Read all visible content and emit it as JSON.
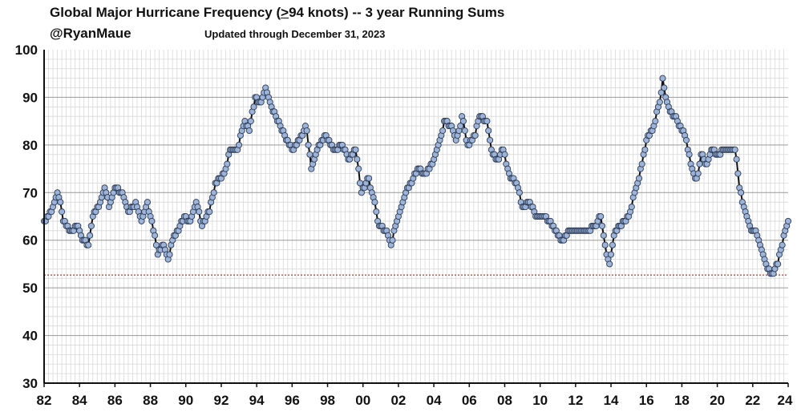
{
  "chart_data": {
    "type": "line",
    "title_prefix": "Global Major Hurricane Frequency (",
    "title_ge": ">",
    "title_suffix": "94 knots)  -- 3 year Running Sums",
    "author": "@RyanMaue",
    "updated": "Updated through December 31, 2023",
    "xlabel": "",
    "ylabel": "",
    "xlim": [
      1982,
      2024
    ],
    "ylim": [
      30,
      100
    ],
    "y_ticks": [
      30,
      40,
      50,
      60,
      70,
      80,
      90,
      100
    ],
    "x_ticks": [
      {
        "value": 1982,
        "label": "82"
      },
      {
        "value": 1984,
        "label": "84"
      },
      {
        "value": 1986,
        "label": "86"
      },
      {
        "value": 1988,
        "label": "88"
      },
      {
        "value": 1990,
        "label": "90"
      },
      {
        "value": 1992,
        "label": "92"
      },
      {
        "value": 1994,
        "label": "94"
      },
      {
        "value": 1996,
        "label": "96"
      },
      {
        "value": 1998,
        "label": "98"
      },
      {
        "value": 2000,
        "label": "00"
      },
      {
        "value": 2002,
        "label": "02"
      },
      {
        "value": 2004,
        "label": "04"
      },
      {
        "value": 2006,
        "label": "06"
      },
      {
        "value": 2008,
        "label": "08"
      },
      {
        "value": 2010,
        "label": "10"
      },
      {
        "value": 2012,
        "label": "12"
      },
      {
        "value": 2014,
        "label": "14"
      },
      {
        "value": 2016,
        "label": "16"
      },
      {
        "value": 2018,
        "label": "18"
      },
      {
        "value": 2020,
        "label": "20"
      },
      {
        "value": 2022,
        "label": "22"
      },
      {
        "value": 2024,
        "label": "24"
      }
    ],
    "reference_line": {
      "value": 52.7,
      "style": "dotted",
      "color": "#c0392b"
    },
    "grid": true,
    "series": [
      {
        "name": "3-year running sum of major hurricanes",
        "interval": "monthly",
        "start": 1982.0,
        "anchors": [
          [
            1982.0,
            64
          ],
          [
            1982.4,
            66
          ],
          [
            1982.8,
            70
          ],
          [
            1983.1,
            64
          ],
          [
            1983.5,
            62
          ],
          [
            1983.9,
            63
          ],
          [
            1984.2,
            60
          ],
          [
            1984.5,
            59
          ],
          [
            1984.8,
            66
          ],
          [
            1985.1,
            67
          ],
          [
            1985.4,
            71
          ],
          [
            1985.7,
            67
          ],
          [
            1986.0,
            71
          ],
          [
            1986.4,
            70
          ],
          [
            1986.8,
            66
          ],
          [
            1987.2,
            68
          ],
          [
            1987.5,
            64
          ],
          [
            1987.8,
            68
          ],
          [
            1988.1,
            64
          ],
          [
            1988.4,
            57
          ],
          [
            1988.7,
            59
          ],
          [
            1989.0,
            56
          ],
          [
            1989.3,
            61
          ],
          [
            1989.6,
            62
          ],
          [
            1989.9,
            65
          ],
          [
            1990.2,
            64
          ],
          [
            1990.6,
            68
          ],
          [
            1990.9,
            63
          ],
          [
            1991.3,
            66
          ],
          [
            1991.7,
            72
          ],
          [
            1992.2,
            74
          ],
          [
            1992.5,
            79
          ],
          [
            1992.9,
            79
          ],
          [
            1993.3,
            85
          ],
          [
            1993.6,
            83
          ],
          [
            1993.9,
            90
          ],
          [
            1994.2,
            89
          ],
          [
            1994.5,
            92
          ],
          [
            1994.8,
            88
          ],
          [
            1995.2,
            85
          ],
          [
            1995.6,
            82
          ],
          [
            1996.0,
            79
          ],
          [
            1996.4,
            81
          ],
          [
            1996.8,
            84
          ],
          [
            1997.1,
            75
          ],
          [
            1997.5,
            80
          ],
          [
            1997.9,
            82
          ],
          [
            1998.4,
            79
          ],
          [
            1998.8,
            80
          ],
          [
            1999.2,
            77
          ],
          [
            1999.6,
            79
          ],
          [
            1999.9,
            70
          ],
          [
            2000.3,
            73
          ],
          [
            2000.6,
            69
          ],
          [
            2000.9,
            63
          ],
          [
            2001.3,
            62
          ],
          [
            2001.6,
            59
          ],
          [
            2001.9,
            64
          ],
          [
            2002.3,
            69
          ],
          [
            2002.7,
            72
          ],
          [
            2003.1,
            75
          ],
          [
            2003.5,
            74
          ],
          [
            2003.9,
            76
          ],
          [
            2004.3,
            80
          ],
          [
            2004.6,
            85
          ],
          [
            2005.0,
            84
          ],
          [
            2005.3,
            81
          ],
          [
            2005.6,
            86
          ],
          [
            2005.9,
            80
          ],
          [
            2006.3,
            82
          ],
          [
            2006.6,
            86
          ],
          [
            2007.0,
            85
          ],
          [
            2007.3,
            78
          ],
          [
            2007.6,
            77
          ],
          [
            2007.9,
            79
          ],
          [
            2008.3,
            73
          ],
          [
            2008.7,
            72
          ],
          [
            2009.0,
            67
          ],
          [
            2009.4,
            68
          ],
          [
            2009.8,
            65
          ],
          [
            2010.2,
            65
          ],
          [
            2010.6,
            64
          ],
          [
            2011.0,
            61
          ],
          [
            2011.3,
            60
          ],
          [
            2011.6,
            62
          ],
          [
            2011.9,
            62
          ],
          [
            2012.3,
            62
          ],
          [
            2012.7,
            62
          ],
          [
            2013.1,
            63
          ],
          [
            2013.4,
            65
          ],
          [
            2013.7,
            58
          ],
          [
            2013.9,
            55
          ],
          [
            2014.2,
            62
          ],
          [
            2014.5,
            63
          ],
          [
            2014.8,
            64
          ],
          [
            2015.1,
            66
          ],
          [
            2015.4,
            71
          ],
          [
            2015.7,
            75
          ],
          [
            2016.0,
            81
          ],
          [
            2016.4,
            84
          ],
          [
            2016.8,
            90
          ],
          [
            2016.9,
            94
          ],
          [
            2017.2,
            88
          ],
          [
            2017.6,
            86
          ],
          [
            2017.9,
            84
          ],
          [
            2018.2,
            82
          ],
          [
            2018.5,
            76
          ],
          [
            2018.8,
            72
          ],
          [
            2019.1,
            78
          ],
          [
            2019.4,
            76
          ],
          [
            2019.7,
            79
          ],
          [
            2020.1,
            78
          ],
          [
            2020.4,
            79
          ],
          [
            2020.7,
            79
          ],
          [
            2021.0,
            79
          ],
          [
            2021.3,
            70
          ],
          [
            2021.6,
            66
          ],
          [
            2021.9,
            62
          ],
          [
            2022.2,
            62
          ],
          [
            2022.5,
            58
          ],
          [
            2022.8,
            54
          ],
          [
            2023.1,
            53
          ],
          [
            2023.4,
            55
          ],
          [
            2023.7,
            60
          ],
          [
            2024.0,
            64
          ]
        ]
      }
    ]
  }
}
